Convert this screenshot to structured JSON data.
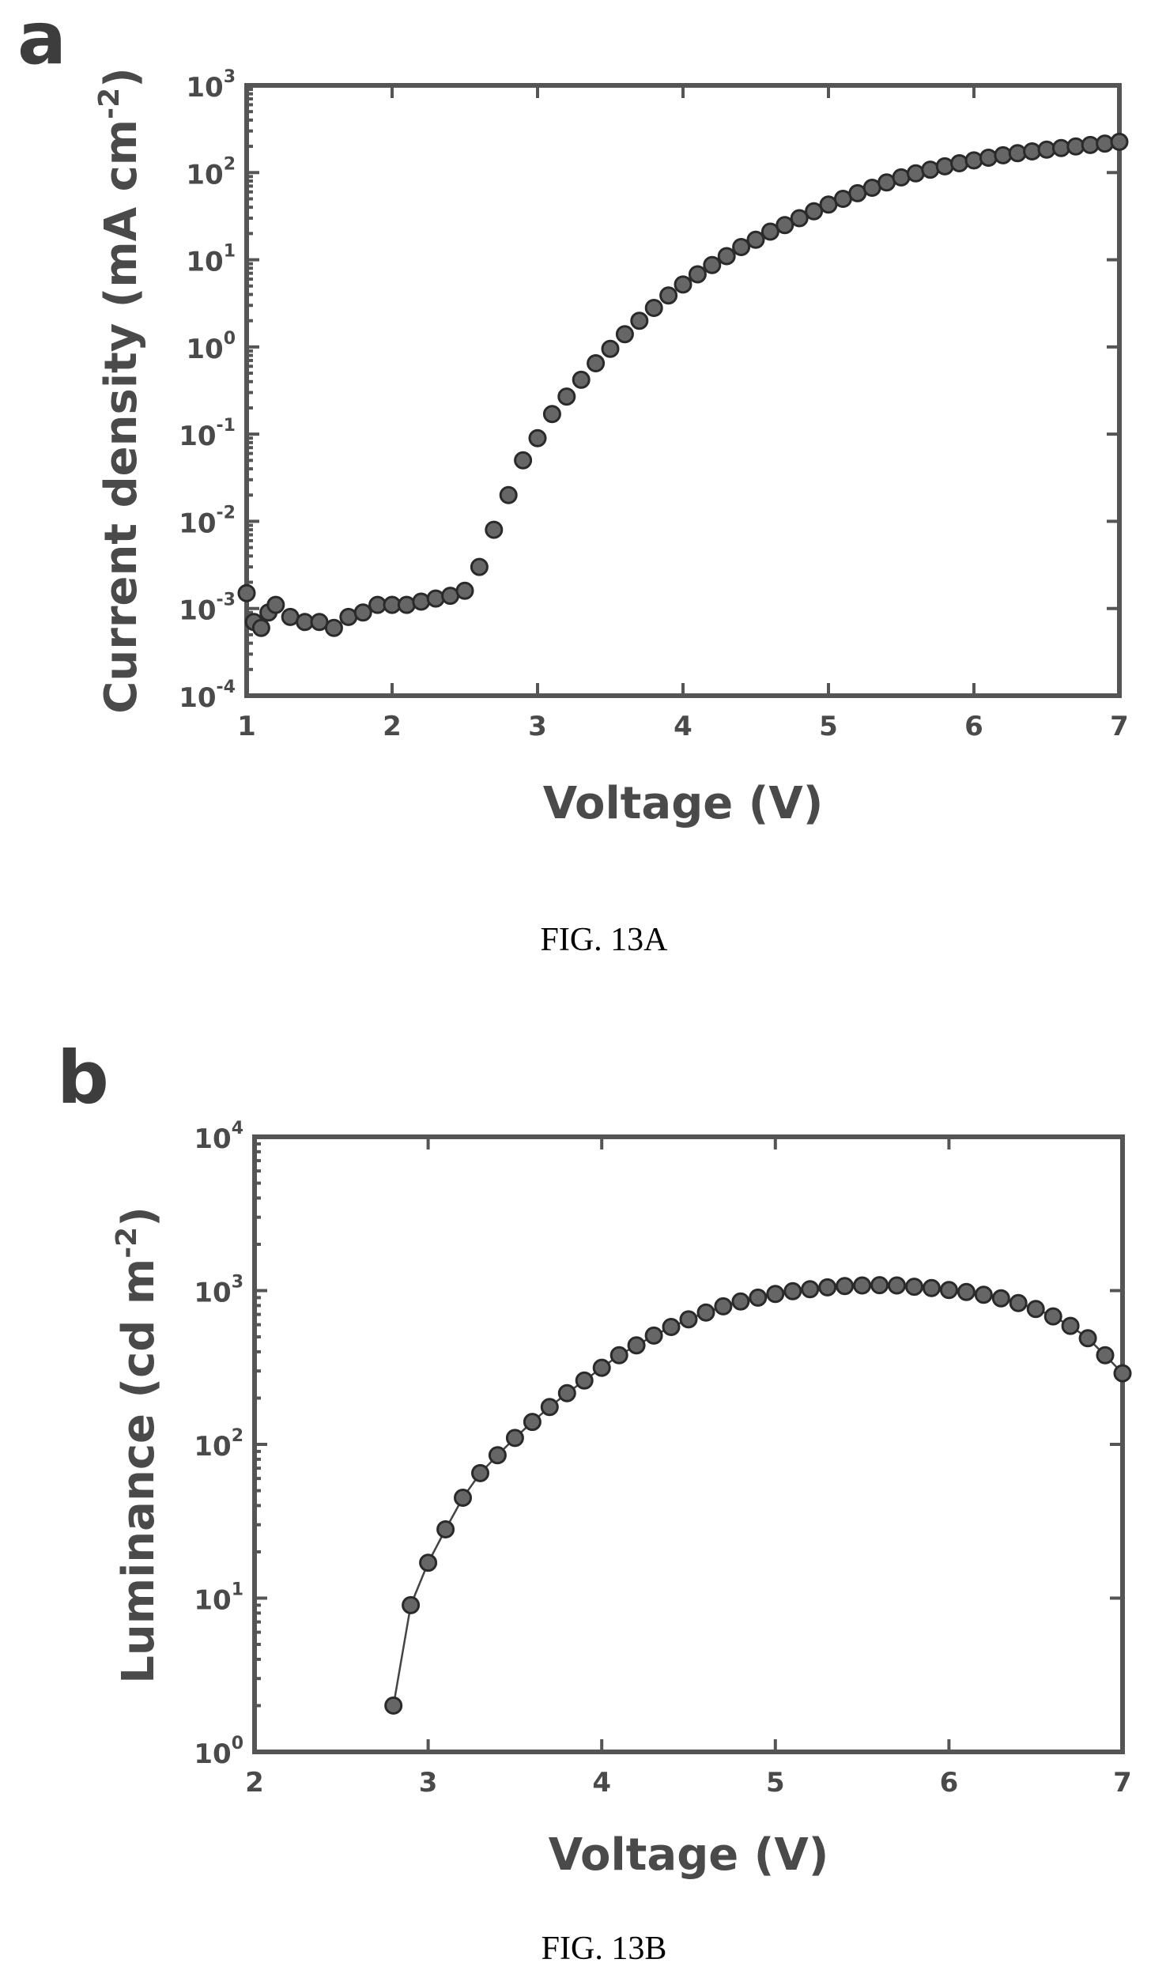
{
  "chart_data": [
    {
      "type": "scatter",
      "panel_label": "a",
      "caption": "FIG. 13A",
      "xlabel": "Voltage (V)",
      "ylabel": "Current density (mA cm",
      "ylabel_sup": "-2",
      "ylabel_close": ")",
      "y_scale": "log",
      "xlim": [
        1,
        7
      ],
      "ylim": [
        0.0001,
        1000
      ],
      "x_ticks": [
        "1",
        "2",
        "3",
        "4",
        "5",
        "6",
        "7"
      ],
      "y_ticks": [
        {
          "base": "10",
          "exp": "-4"
        },
        {
          "base": "10",
          "exp": "-3"
        },
        {
          "base": "10",
          "exp": "-2"
        },
        {
          "base": "10",
          "exp": "-1"
        },
        {
          "base": "10",
          "exp": "0"
        },
        {
          "base": "10",
          "exp": "1"
        },
        {
          "base": "10",
          "exp": "2"
        },
        {
          "base": "10",
          "exp": "3"
        }
      ],
      "series": [
        {
          "x": [
            1.0,
            1.05,
            1.1,
            1.15,
            1.2,
            1.3,
            1.4,
            1.5,
            1.6,
            1.7,
            1.8,
            1.9,
            2.0,
            2.1,
            2.2,
            2.3,
            2.4,
            2.5,
            2.6,
            2.7,
            2.8,
            2.9,
            3.0,
            3.1,
            3.2,
            3.3,
            3.4,
            3.5,
            3.6,
            3.7,
            3.8,
            3.9,
            4.0,
            4.1,
            4.2,
            4.3,
            4.4,
            4.5,
            4.6,
            4.7,
            4.8,
            4.9,
            5.0,
            5.1,
            5.2,
            5.3,
            5.4,
            5.5,
            5.6,
            5.7,
            5.8,
            5.9,
            6.0,
            6.1,
            6.2,
            6.3,
            6.4,
            6.5,
            6.6,
            6.7,
            6.8,
            6.9,
            7.0
          ],
          "y": [
            0.0015,
            0.0007,
            0.0006,
            0.0009,
            0.0011,
            0.0008,
            0.0007,
            0.0007,
            0.0006,
            0.0008,
            0.0009,
            0.0011,
            0.0011,
            0.0011,
            0.0012,
            0.0013,
            0.0014,
            0.0016,
            0.003,
            0.008,
            0.02,
            0.05,
            0.09,
            0.17,
            0.27,
            0.42,
            0.65,
            0.95,
            1.4,
            2.0,
            2.8,
            3.9,
            5.2,
            6.8,
            8.7,
            11,
            14,
            17,
            21,
            25,
            30,
            36,
            43,
            50,
            58,
            67,
            77,
            88,
            98,
            108,
            118,
            128,
            138,
            148,
            158,
            167,
            175,
            183,
            191,
            199,
            207,
            215,
            225
          ]
        }
      ]
    },
    {
      "type": "line",
      "panel_label": "b",
      "caption": "FIG. 13B",
      "xlabel": "Voltage (V)",
      "ylabel": "Luminance (cd m",
      "ylabel_sup": "-2",
      "ylabel_close": ")",
      "y_scale": "log",
      "xlim": [
        2,
        7
      ],
      "ylim": [
        1,
        10000
      ],
      "x_ticks": [
        "2",
        "3",
        "4",
        "5",
        "6",
        "7"
      ],
      "y_ticks": [
        {
          "base": "10",
          "exp": "0"
        },
        {
          "base": "10",
          "exp": "1"
        },
        {
          "base": "10",
          "exp": "2"
        },
        {
          "base": "10",
          "exp": "3"
        },
        {
          "base": "10",
          "exp": "4"
        }
      ],
      "series": [
        {
          "x": [
            2.8,
            2.9,
            3.0,
            3.1,
            3.2,
            3.3,
            3.4,
            3.5,
            3.6,
            3.7,
            3.8,
            3.9,
            4.0,
            4.1,
            4.2,
            4.3,
            4.4,
            4.5,
            4.6,
            4.7,
            4.8,
            4.9,
            5.0,
            5.1,
            5.2,
            5.3,
            5.4,
            5.5,
            5.6,
            5.7,
            5.8,
            5.9,
            6.0,
            6.1,
            6.2,
            6.3,
            6.4,
            6.5,
            6.6,
            6.7,
            6.8,
            6.9,
            7.0
          ],
          "y": [
            2,
            9,
            17,
            28,
            45,
            65,
            85,
            110,
            140,
            175,
            215,
            260,
            315,
            380,
            440,
            510,
            580,
            650,
            720,
            790,
            850,
            900,
            950,
            990,
            1020,
            1050,
            1070,
            1080,
            1085,
            1080,
            1060,
            1040,
            1010,
            980,
            940,
            890,
            830,
            760,
            680,
            590,
            490,
            380,
            290
          ]
        }
      ]
    }
  ]
}
